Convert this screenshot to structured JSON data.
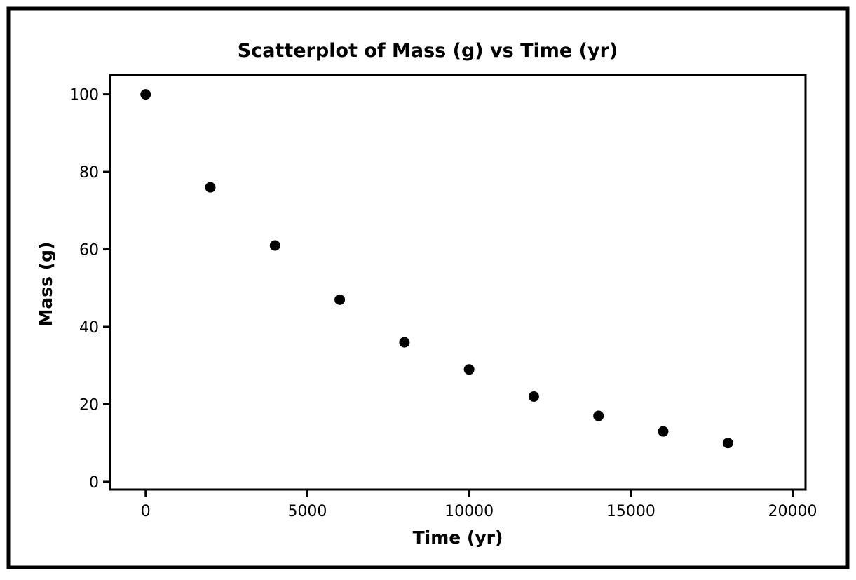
{
  "chart_data": {
    "type": "scatter",
    "title": "Scatterplot of Mass (g) vs Time (yr)",
    "xlabel": "Time (yr)",
    "ylabel": "Mass (g)",
    "xlim": [
      -1100,
      20400
    ],
    "ylim": [
      -2,
      105
    ],
    "xticks": [
      0,
      5000,
      10000,
      15000,
      20000
    ],
    "yticks": [
      0,
      20,
      40,
      60,
      80,
      100
    ],
    "grid": false,
    "series": [
      {
        "x": [
          0,
          2000,
          4000,
          6000,
          8000,
          10000,
          12000,
          14000,
          16000,
          18000
        ],
        "y": [
          100,
          76,
          61,
          47,
          36,
          29,
          22,
          17,
          13,
          10
        ]
      }
    ],
    "colors": {
      "marker": "#000000",
      "axis": "#000000",
      "background": "#ffffff"
    }
  }
}
